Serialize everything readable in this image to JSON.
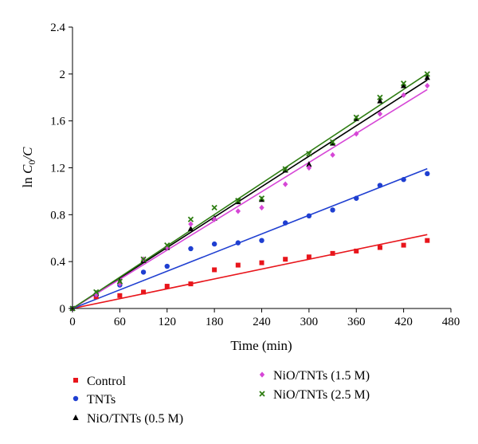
{
  "chart_data": {
    "type": "scatter",
    "title": "",
    "xlabel": "Time (min)",
    "ylabel_prefix": "ln ",
    "ylabel_num": "C",
    "ylabel_sub": "0",
    "ylabel_den": "/C",
    "xlim": [
      0,
      480
    ],
    "ylim": [
      0,
      2.4
    ],
    "xticks": [
      0,
      60,
      120,
      180,
      240,
      300,
      360,
      420,
      480
    ],
    "yticks": [
      0,
      0.4,
      0.8,
      1.2,
      1.6,
      2,
      2.4
    ],
    "xtick_labels": [
      "0",
      "60",
      "120",
      "180",
      "240",
      "300",
      "360",
      "420",
      "480"
    ],
    "ytick_labels": [
      "0",
      "0.4",
      "0.8",
      "1.2",
      "1.6",
      "2",
      "2.4"
    ],
    "grid": false,
    "legend_position": "bottom",
    "series": [
      {
        "name": "Control",
        "color": "#e8151b",
        "marker": "square",
        "x": [
          0,
          30,
          60,
          90,
          120,
          150,
          180,
          210,
          240,
          270,
          300,
          330,
          360,
          390,
          420,
          450
        ],
        "y": [
          0,
          0.1,
          0.11,
          0.14,
          0.19,
          0.21,
          0.33,
          0.37,
          0.39,
          0.42,
          0.44,
          0.47,
          0.49,
          0.52,
          0.54,
          0.58
        ],
        "fit_slope": 0.0014
      },
      {
        "name": "TNTs",
        "color": "#1f3fd1",
        "marker": "circle",
        "x": [
          0,
          30,
          60,
          90,
          120,
          150,
          180,
          210,
          240,
          270,
          300,
          330,
          360,
          390,
          420,
          450
        ],
        "y": [
          0,
          0.12,
          0.2,
          0.31,
          0.36,
          0.51,
          0.55,
          0.56,
          0.58,
          0.73,
          0.79,
          0.84,
          0.94,
          1.05,
          1.1,
          1.15
        ],
        "fit_slope": 0.00265
      },
      {
        "name": "NiO/TNTs (0.5 M)",
        "color": "#000000",
        "marker": "triangle",
        "x": [
          0,
          30,
          60,
          90,
          120,
          150,
          180,
          210,
          240,
          270,
          300,
          330,
          360,
          390,
          420,
          450
        ],
        "y": [
          0,
          0.13,
          0.23,
          0.41,
          0.52,
          0.68,
          0.77,
          0.91,
          0.93,
          1.18,
          1.23,
          1.41,
          1.62,
          1.77,
          1.9,
          1.97
        ],
        "fit_slope": 0.00433
      },
      {
        "name": "NiO/TNTs (1.5 M)",
        "color": "#d646d6",
        "marker": "diamond",
        "x": [
          0,
          30,
          60,
          90,
          120,
          150,
          180,
          210,
          240,
          270,
          300,
          330,
          360,
          390,
          420,
          450
        ],
        "y": [
          0,
          0.12,
          0.21,
          0.42,
          0.52,
          0.72,
          0.76,
          0.83,
          0.86,
          1.06,
          1.2,
          1.31,
          1.49,
          1.66,
          1.82,
          1.9
        ],
        "fit_slope": 0.00415
      },
      {
        "name": "NiO/TNTs (2.5 M)",
        "color": "#2e7d12",
        "marker": "x",
        "x": [
          0,
          30,
          60,
          90,
          120,
          150,
          180,
          210,
          240,
          270,
          300,
          330,
          360,
          390,
          420,
          450
        ],
        "y": [
          0,
          0.14,
          0.23,
          0.42,
          0.54,
          0.76,
          0.86,
          0.92,
          0.94,
          1.19,
          1.32,
          1.42,
          1.63,
          1.8,
          1.92,
          2.0
        ],
        "fit_slope": 0.00445
      }
    ]
  }
}
